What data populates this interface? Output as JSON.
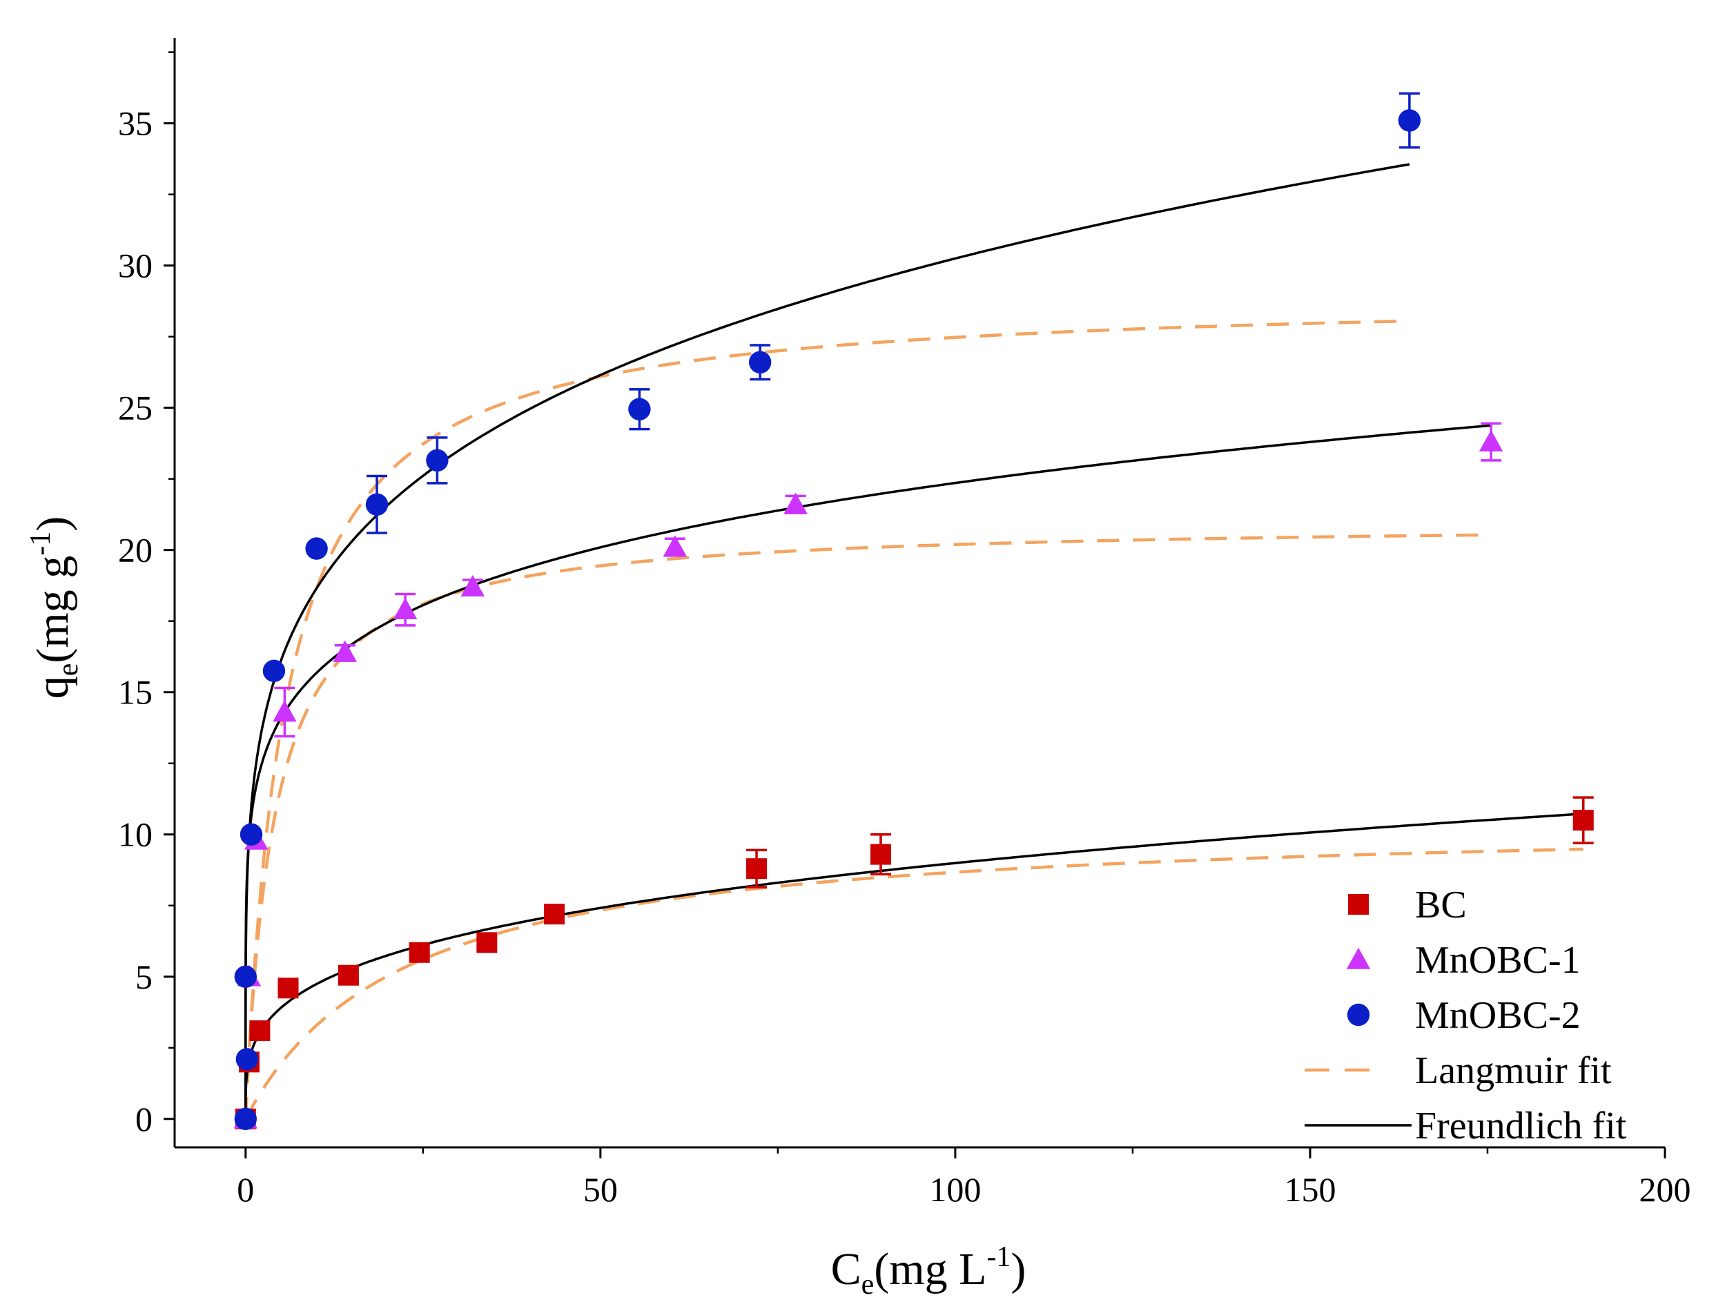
{
  "chart_data": {
    "type": "scatter",
    "title": "",
    "xlabel": {
      "main": "C",
      "sub": "e",
      "unit_pre": "(mg L",
      "sup": "-1",
      "unit_post": ")"
    },
    "ylabel": {
      "main": "q",
      "sub": "e",
      "unit_pre": "(mg g",
      "sup": "-1",
      "unit_post": ")"
    },
    "xlim": [
      -10,
      200
    ],
    "ylim": [
      -1,
      38
    ],
    "xticks": [
      0,
      50,
      100,
      150,
      200
    ],
    "xtick_labels": [
      "0",
      "50",
      "100",
      "150",
      "200"
    ],
    "yticks": [
      0,
      5,
      10,
      15,
      20,
      25,
      30,
      35
    ],
    "ytick_labels": [
      "0",
      "5",
      "10",
      "15",
      "20",
      "25",
      "30",
      "35"
    ],
    "grid": false,
    "legend_position": "bottom-right",
    "series": [
      {
        "name": "BC",
        "marker": "square",
        "color": "#cc0000",
        "x": [
          0,
          0.5,
          2,
          6,
          14.5,
          24.5,
          34,
          43.5,
          72,
          89.5,
          188.5
        ],
        "y": [
          0,
          2,
          3.1,
          4.6,
          5.05,
          5.85,
          6.2,
          7.2,
          8.8,
          9.3,
          10.5
        ],
        "err": [
          0,
          0,
          0,
          0,
          0.25,
          0,
          0,
          0.2,
          0.65,
          0.7,
          0.8
        ]
      },
      {
        "name": "MnOBC-1",
        "marker": "triangle",
        "color": "#cc33ff",
        "x": [
          0,
          0.5,
          1.5,
          5.5,
          14,
          22.5,
          32,
          60.5,
          77.5,
          175.5
        ],
        "y": [
          0,
          5,
          9.8,
          14.3,
          16.4,
          17.9,
          18.7,
          20.1,
          21.6,
          23.8
        ],
        "err": [
          0,
          0,
          0,
          0.85,
          0.25,
          0.55,
          0.25,
          0.3,
          0.3,
          0.65
        ]
      },
      {
        "name": "MnOBC-2",
        "marker": "circle",
        "color": "#0a1fc8",
        "x": [
          0,
          0.2,
          0,
          0.8,
          4,
          10,
          18.5,
          27,
          55.5,
          72.5,
          164
        ],
        "y": [
          0,
          2.1,
          5,
          10,
          15.75,
          20.05,
          21.6,
          23.15,
          24.95,
          26.6,
          35.1
        ],
        "err": [
          0,
          0,
          0,
          0,
          0,
          0,
          1.0,
          0.8,
          0.7,
          0.6,
          0.95
        ]
      }
    ],
    "fits": [
      {
        "name": "Langmuir fit",
        "style": "dashed",
        "color": "#f4a460",
        "applies_to": "BC",
        "model": "langmuir",
        "qmax": 10.6,
        "K": 0.045,
        "xmax": 188.5
      },
      {
        "name": "Langmuir fit",
        "style": "dashed",
        "color": "#f4a460",
        "applies_to": "MnOBC-1",
        "model": "langmuir",
        "qmax": 21.0,
        "K": 0.25,
        "xmax": 175.5
      },
      {
        "name": "Langmuir fit",
        "style": "dashed",
        "color": "#f4a460",
        "applies_to": "MnOBC-2",
        "model": "langmuir",
        "qmax": 29.0,
        "K": 0.18,
        "xmax": 164
      },
      {
        "name": "Freundlich fit",
        "style": "solid",
        "color": "#000000",
        "applies_to": "BC",
        "model": "freundlich",
        "K": 2.5,
        "n_inv": 0.278,
        "xmax": 188.5
      },
      {
        "name": "Freundlich fit",
        "style": "solid",
        "color": "#000000",
        "applies_to": "MnOBC-1",
        "model": "freundlich",
        "K": 11.0,
        "n_inv": 0.154,
        "xmax": 175.5
      },
      {
        "name": "Freundlich fit",
        "style": "solid",
        "color": "#000000",
        "applies_to": "MnOBC-2",
        "model": "freundlich",
        "K": 11.5,
        "n_inv": 0.21,
        "xmax": 164
      }
    ],
    "legend": [
      {
        "label": "BC",
        "marker": "square",
        "color": "#cc0000"
      },
      {
        "label": "MnOBC-1",
        "marker": "triangle",
        "color": "#cc33ff"
      },
      {
        "label": "MnOBC-2",
        "marker": "circle",
        "color": "#0a1fc8"
      },
      {
        "label": "Langmuir fit",
        "marker": "dashed-line",
        "color": "#f4a460"
      },
      {
        "label": "Freundlich fit",
        "marker": "solid-line",
        "color": "#000000"
      }
    ]
  }
}
